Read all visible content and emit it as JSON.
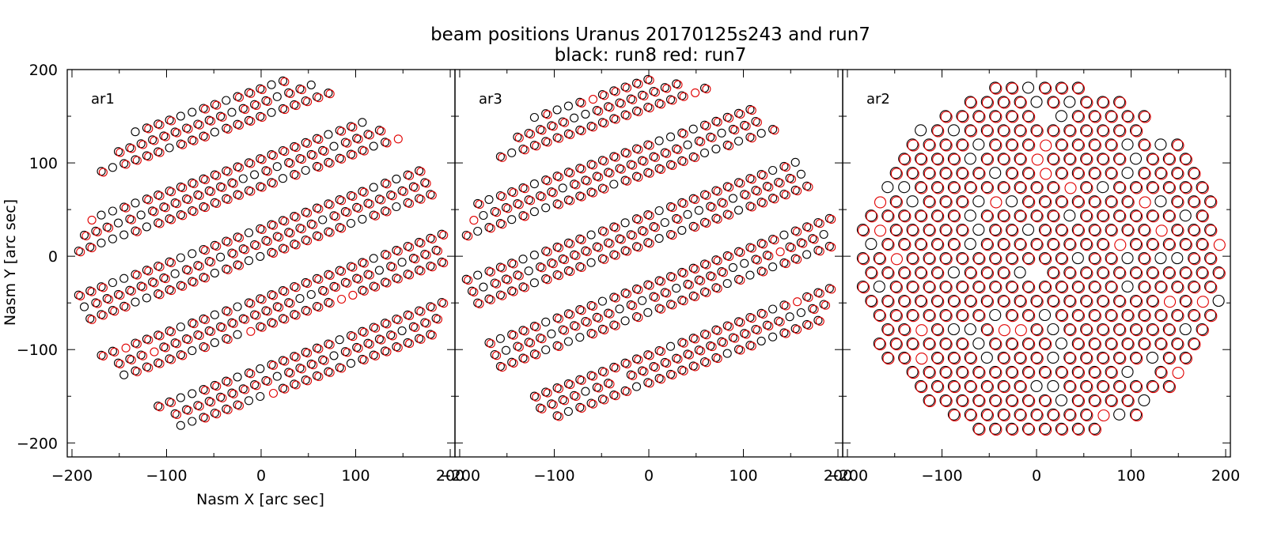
{
  "title": "beam positions Uranus 20170125s243 and run7",
  "subtitle": "black: run8 red: run7",
  "colors": {
    "run8": "#000000",
    "run7": "#e00000",
    "axis": "#000000"
  },
  "chart_data": [
    {
      "type": "scatter",
      "panel_label": "ar1",
      "xlabel": "Nasm X [arc sec]",
      "ylabel": "Nasm Y [arc sec]",
      "xlim": [
        -200,
        200
      ],
      "ylim": [
        -215,
        200
      ],
      "xticks": [
        "−200",
        "−100",
        "0",
        "100",
        "200"
      ],
      "yticks": [
        "−200",
        "−100",
        "0",
        "100",
        "200"
      ],
      "marker": "open-circle",
      "footprint": {
        "center": [
          0,
          -5
        ],
        "radius": 197
      },
      "bands": [
        {
          "a": 15,
          "b": 0.37
        },
        {
          "a": 90,
          "b": 0.36
        },
        {
          "a": 165,
          "b": 0.35
        },
        {
          "a": -60,
          "b": 0.36
        },
        {
          "a": -135,
          "b": 0.37
        }
      ],
      "band_half_width": 24,
      "pitch": 12,
      "series": [
        {
          "name": "run8",
          "color": "#000000",
          "dx": 0,
          "dy": 0,
          "missing": 0.02
        },
        {
          "name": "run7",
          "color": "#e00000",
          "dx": 2,
          "dy": -1,
          "missing": 0.2
        }
      ]
    },
    {
      "type": "scatter",
      "panel_label": "ar3",
      "xlabel": "",
      "ylabel": "",
      "xlim": [
        -200,
        200
      ],
      "ylim": [
        -215,
        200
      ],
      "xticks": [
        "−200",
        "−100",
        "0",
        "100",
        "200"
      ],
      "yticks": [],
      "marker": "open-circle",
      "footprint": {
        "center": [
          0,
          -5
        ],
        "radius": 197
      },
      "bands": [
        {
          "a": 105,
          "b": 0.35
        },
        {
          "a": 30,
          "b": 0.36
        },
        {
          "a": -45,
          "b": 0.37
        },
        {
          "a": -120,
          "b": 0.37
        },
        {
          "a": 175,
          "b": 0.34
        }
      ],
      "band_half_width": 24,
      "pitch": 12,
      "series": [
        {
          "name": "run8",
          "color": "#000000",
          "dx": 0,
          "dy": 0,
          "missing": 0.02
        },
        {
          "name": "run7",
          "color": "#e00000",
          "dx": 2,
          "dy": -1,
          "missing": 0.2
        }
      ]
    },
    {
      "type": "scatter",
      "panel_label": "ar2",
      "xlabel": "",
      "ylabel": "",
      "xlim": [
        -200,
        200
      ],
      "ylim": [
        -215,
        200
      ],
      "xticks": [
        "−200",
        "−100",
        "0",
        "100",
        "200"
      ],
      "yticks": [],
      "marker": "open-circle-large",
      "footprint": {
        "center": [
          5,
          -5
        ],
        "radius": 193
      },
      "grid_pitch": 17.5,
      "series": [
        {
          "name": "run8",
          "color": "#000000",
          "dx": 0,
          "dy": 0,
          "missing": 0.05
        },
        {
          "name": "run7",
          "color": "#e00000",
          "dx": 1,
          "dy": -1,
          "missing": 0.12
        }
      ]
    }
  ]
}
